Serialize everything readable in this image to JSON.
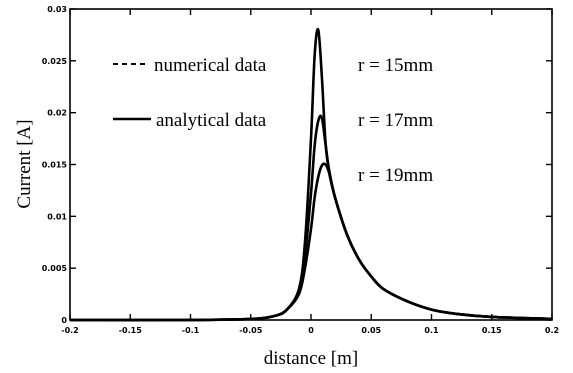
{
  "chart_data": {
    "type": "line",
    "title": "",
    "xlabel": "distance [m]",
    "ylabel": "Current [A]",
    "xlim": [
      -0.2,
      0.2
    ],
    "ylim": [
      0,
      0.03
    ],
    "grid": false,
    "legend_placement": "top-left",
    "x_ticks": [
      -0.2,
      -0.15,
      -0.1,
      -0.05,
      0,
      0.05,
      0.1,
      0.15,
      0.2
    ],
    "x_tick_labels": [
      "-0.2",
      "-0.15",
      "-0.1",
      "-0.05",
      "0",
      "0.05",
      "0.1",
      "0.15",
      "0.2"
    ],
    "y_ticks": [
      0,
      0.005,
      0.01,
      0.015,
      0.02,
      0.025,
      0.03
    ],
    "y_tick_labels": [
      "0",
      "0.005",
      "0.01",
      "0.015",
      "0.02",
      "0.025",
      "0.03"
    ],
    "legend": [
      {
        "label": "numerical data",
        "style": "dashed"
      },
      {
        "label": "analytical data",
        "style": "solid"
      }
    ],
    "annotations": [
      "r = 15mm",
      "r = 17mm",
      "r = 19mm"
    ],
    "x": [
      -0.2,
      -0.1,
      -0.05,
      -0.03,
      -0.02,
      -0.01,
      -0.005,
      0,
      0.003,
      0.006,
      0.009,
      0.012,
      0.015,
      0.02,
      0.03,
      0.04,
      0.05,
      0.06,
      0.08,
      0.1,
      0.12,
      0.15,
      0.2
    ],
    "series": [
      {
        "name": "r = 15mm",
        "values": [
          0,
          0,
          0.0001,
          0.0004,
          0.001,
          0.003,
          0.0075,
          0.0175,
          0.0255,
          0.028,
          0.0235,
          0.0172,
          0.0143,
          0.0118,
          0.0082,
          0.0058,
          0.0042,
          0.003,
          0.0018,
          0.001,
          0.0006,
          0.0003,
          0.0001
        ]
      },
      {
        "name": "r = 17mm",
        "values": [
          0,
          0,
          0.0001,
          0.0004,
          0.001,
          0.0028,
          0.0062,
          0.0122,
          0.0168,
          0.0192,
          0.0195,
          0.017,
          0.0145,
          0.0118,
          0.0082,
          0.0058,
          0.0042,
          0.003,
          0.0018,
          0.001,
          0.0006,
          0.0003,
          0.0001
        ]
      },
      {
        "name": "r = 19mm",
        "values": [
          0,
          0,
          0.0001,
          0.0004,
          0.001,
          0.0025,
          0.005,
          0.0088,
          0.0118,
          0.0138,
          0.0149,
          0.015,
          0.0142,
          0.0118,
          0.0082,
          0.0058,
          0.0042,
          0.003,
          0.0018,
          0.001,
          0.0006,
          0.0003,
          0.0001
        ]
      }
    ]
  }
}
